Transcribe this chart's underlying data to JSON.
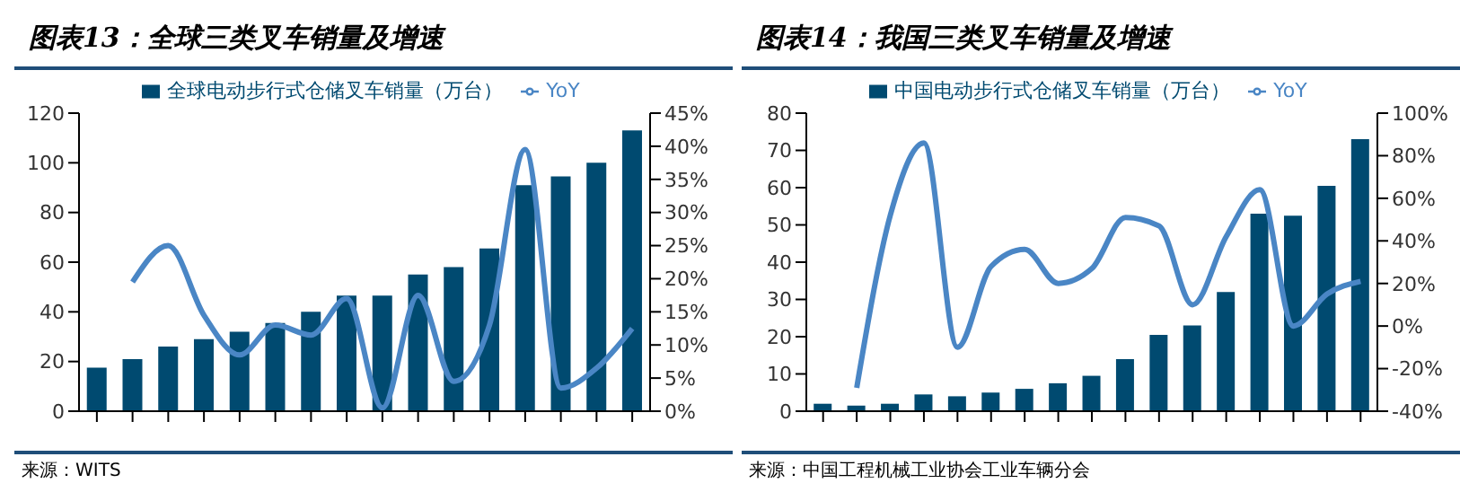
{
  "chart_data": [
    {
      "type": "bar",
      "title": "图表13：全球三类叉车销量及增速",
      "categories": [
        null,
        null,
        null,
        null,
        null,
        null,
        null,
        null,
        null,
        null,
        null,
        null,
        null,
        null,
        null,
        null
      ],
      "series": [
        {
          "name": "全球电动步行式仓储叉车销量（万台）",
          "color": "#004a70",
          "values": [
            17.5,
            21,
            26,
            29,
            32,
            35.5,
            40,
            46.5,
            46.5,
            55,
            58,
            65.5,
            91,
            94.5,
            100,
            113
          ]
        },
        {
          "name": "YoY",
          "type": "line",
          "axis": "y2",
          "color": "#4a86c5",
          "values": [
            null,
            19.5,
            25,
            14.5,
            8.5,
            13,
            11.5,
            17,
            0.5,
            17.5,
            4.5,
            13,
            39.5,
            3.5,
            6.5,
            12.5
          ]
        }
      ],
      "ylim": [
        0,
        120
      ],
      "yticks": [
        0,
        20,
        40,
        60,
        80,
        100,
        120
      ],
      "y2lim": [
        0,
        45
      ],
      "y2ticks": [
        {
          "value": 0,
          "label": "0%"
        },
        {
          "value": 5,
          "label": "5%"
        },
        {
          "value": 10,
          "label": "10%"
        },
        {
          "value": 15,
          "label": "15%"
        },
        {
          "value": 20,
          "label": "20%"
        },
        {
          "value": 25,
          "label": "25%"
        },
        {
          "value": 30,
          "label": "30%"
        },
        {
          "value": 35,
          "label": "35%"
        },
        {
          "value": 40,
          "label": "40%"
        },
        {
          "value": 45,
          "label": "45%"
        }
      ],
      "legend": "top",
      "marker": "none",
      "annotations": [
        "来源：WITS"
      ]
    },
    {
      "type": "bar",
      "title": "图表14：我国三类叉车销量及增速",
      "categories": [
        null,
        null,
        null,
        null,
        null,
        null,
        null,
        null,
        null,
        null,
        null,
        null,
        null,
        null,
        null,
        null,
        null
      ],
      "series": [
        {
          "name": "中国电动步行式仓储叉车销量（万台）",
          "color": "#004a70",
          "values": [
            2,
            1.5,
            2,
            4.5,
            4,
            5,
            6,
            7.5,
            9.5,
            14,
            20.5,
            23,
            32,
            53,
            52.5,
            60.5,
            73
          ]
        },
        {
          "name": "YoY",
          "type": "line",
          "axis": "y2",
          "color": "#4a86c5",
          "values": [
            null,
            -29,
            52,
            86,
            -10,
            28,
            36,
            20,
            27,
            51,
            47,
            10,
            42,
            64,
            0,
            15,
            21
          ]
        }
      ],
      "ylim": [
        0,
        80
      ],
      "yticks": [
        0,
        10,
        20,
        30,
        40,
        50,
        60,
        70,
        80
      ],
      "y2lim": [
        -40,
        100
      ],
      "y2ticks": [
        {
          "value": -40,
          "label": "-40%"
        },
        {
          "value": -20,
          "label": "-20%"
        },
        {
          "value": 0,
          "label": "0%"
        },
        {
          "value": 20,
          "label": "20%"
        },
        {
          "value": 40,
          "label": "40%"
        },
        {
          "value": 60,
          "label": "60%"
        },
        {
          "value": 80,
          "label": "80%"
        },
        {
          "value": 100,
          "label": "100%"
        }
      ],
      "legend": "top",
      "marker": "none",
      "annotations": [
        "来源：中国工程机械工业协会工业车辆分会"
      ]
    }
  ]
}
